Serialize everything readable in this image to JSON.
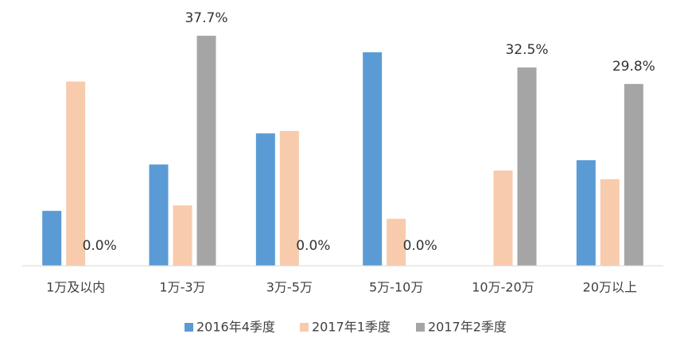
{
  "chart_data": {
    "type": "bar",
    "categories": [
      "1万及以内",
      "1万-3万",
      "3万-5万",
      "5万-10万",
      "10万-20万",
      "20万以上"
    ],
    "series": [
      {
        "name": "2016年4季度",
        "color": "#5b9bd5",
        "values": [
          9.0,
          16.6,
          21.7,
          35.0,
          0,
          17.3
        ]
      },
      {
        "name": "2017年1季度",
        "color": "#f8cbad",
        "values": [
          30.2,
          9.9,
          22.1,
          7.7,
          15.6,
          14.2
        ]
      },
      {
        "name": "2017年2季度",
        "color": "#a5a5a5",
        "values": [
          0.0,
          37.7,
          0.0,
          0.0,
          32.5,
          29.8
        ],
        "value_labels": [
          "0.0%",
          "37.7%",
          "0.0%",
          "0.0%",
          "32.5%",
          "29.8%"
        ]
      }
    ],
    "legend": "bottom"
  }
}
